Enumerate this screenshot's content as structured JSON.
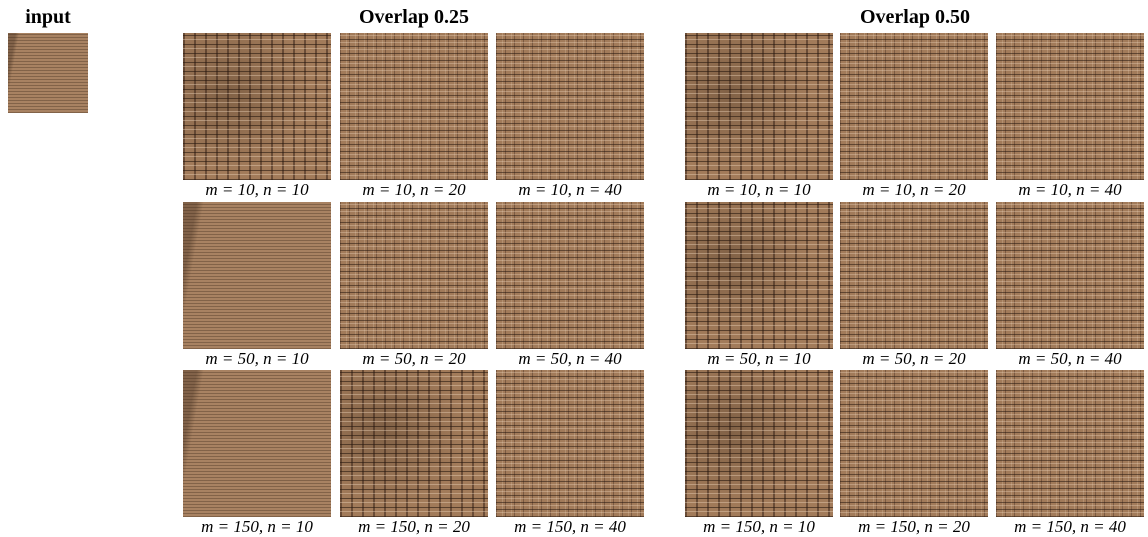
{
  "input_label": "input",
  "groups": [
    {
      "title": "Overlap 0.25",
      "captions": [
        [
          "m = 10, n = 10",
          "m = 10, n = 20",
          "m = 10, n = 40"
        ],
        [
          "m = 50, n = 10",
          "m = 50, n = 20",
          "m = 50, n = 40"
        ],
        [
          "m = 150, n = 10",
          "m = 150, n = 20",
          "m = 150, n = 40"
        ]
      ]
    },
    {
      "title": "Overlap 0.50",
      "captions": [
        [
          "m = 10, n = 10",
          "m = 10, n = 20",
          "m = 10, n = 40"
        ],
        [
          "m = 50, n = 10",
          "m = 50, n = 20",
          "m = 50, n = 40"
        ],
        [
          "m = 150, n = 10",
          "m = 150, n = 20",
          "m = 150, n = 40"
        ]
      ]
    }
  ]
}
